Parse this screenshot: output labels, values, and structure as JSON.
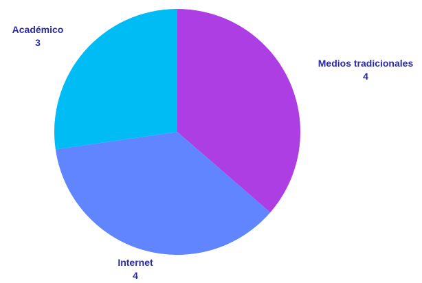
{
  "chart_data": {
    "type": "pie",
    "title": "",
    "slices": [
      {
        "label": "Medios tradicionales",
        "value": 4,
        "color": "#ad3ee3"
      },
      {
        "label": "Internet",
        "value": 4,
        "color": "#6184ff"
      },
      {
        "label": "Académico",
        "value": 3,
        "color": "#00bcf4"
      }
    ],
    "start_angle_deg": 0,
    "direction": "clockwise",
    "legend": "none",
    "label_style": "category name above value, outside the pie"
  }
}
